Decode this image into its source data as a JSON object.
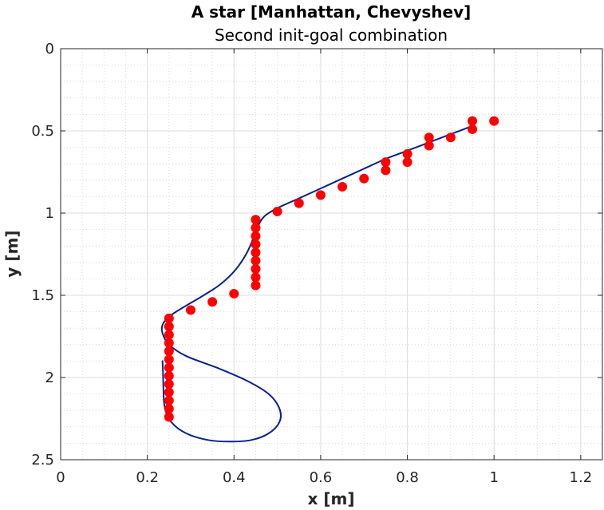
{
  "chart_data": {
    "type": "scatter",
    "title": "A star [Manhattan, Chevyshev]",
    "subtitle": "Second init-goal combination",
    "xlabel": "x [m]",
    "ylabel": "y [m]",
    "xlim": [
      0,
      1.25
    ],
    "ylim": [
      0,
      2.5
    ],
    "y_reversed": true,
    "grid": "major and minor",
    "x_ticks": [
      0,
      0.2,
      0.4,
      0.6,
      0.8,
      1,
      1.2
    ],
    "x_tick_labels": [
      "0",
      "0.2",
      "0.4",
      "0.6",
      "0.8",
      "1",
      "1.2"
    ],
    "y_ticks": [
      0,
      0.5,
      1,
      1.5,
      2,
      2.5
    ],
    "y_tick_labels": [
      "0",
      "0.5",
      "1",
      "1.5",
      "2",
      "2.5"
    ],
    "series": [
      {
        "kind": "points",
        "color": "#ff0000",
        "points": [
          [
            1.0,
            0.44
          ],
          [
            0.95,
            0.44
          ],
          [
            0.95,
            0.49
          ],
          [
            0.9,
            0.54
          ],
          [
            0.85,
            0.54
          ],
          [
            0.85,
            0.59
          ],
          [
            0.8,
            0.64
          ],
          [
            0.8,
            0.69
          ],
          [
            0.75,
            0.69
          ],
          [
            0.75,
            0.74
          ],
          [
            0.7,
            0.79
          ],
          [
            0.65,
            0.84
          ],
          [
            0.6,
            0.89
          ],
          [
            0.55,
            0.94
          ],
          [
            0.5,
            0.99
          ],
          [
            0.45,
            1.04
          ],
          [
            0.45,
            1.09
          ],
          [
            0.45,
            1.14
          ],
          [
            0.45,
            1.19
          ],
          [
            0.45,
            1.24
          ],
          [
            0.45,
            1.29
          ],
          [
            0.45,
            1.34
          ],
          [
            0.45,
            1.39
          ],
          [
            0.45,
            1.44
          ],
          [
            0.4,
            1.49
          ],
          [
            0.35,
            1.54
          ],
          [
            0.3,
            1.59
          ],
          [
            0.25,
            1.64
          ],
          [
            0.25,
            1.69
          ],
          [
            0.25,
            1.74
          ],
          [
            0.25,
            1.79
          ],
          [
            0.25,
            1.84
          ],
          [
            0.25,
            1.89
          ],
          [
            0.25,
            1.94
          ],
          [
            0.25,
            1.99
          ],
          [
            0.25,
            2.04
          ],
          [
            0.25,
            2.09
          ],
          [
            0.25,
            2.14
          ],
          [
            0.25,
            2.19
          ],
          [
            0.25,
            2.24
          ]
        ]
      },
      {
        "kind": "line",
        "color": "#0a1f8f",
        "points": [
          [
            0.95,
            0.47
          ],
          [
            0.9,
            0.52
          ],
          [
            0.85,
            0.57
          ],
          [
            0.8,
            0.62
          ],
          [
            0.75,
            0.67
          ],
          [
            0.7,
            0.73
          ],
          [
            0.65,
            0.79
          ],
          [
            0.6,
            0.85
          ],
          [
            0.55,
            0.91
          ],
          [
            0.5,
            0.97
          ],
          [
            0.47,
            1.02
          ],
          [
            0.455,
            1.08
          ],
          [
            0.445,
            1.15
          ],
          [
            0.43,
            1.24
          ],
          [
            0.405,
            1.34
          ],
          [
            0.37,
            1.43
          ],
          [
            0.33,
            1.5
          ],
          [
            0.285,
            1.57
          ],
          [
            0.25,
            1.63
          ],
          [
            0.235,
            1.68
          ],
          [
            0.235,
            1.73
          ],
          [
            0.25,
            1.8
          ],
          [
            0.29,
            1.87
          ],
          [
            0.36,
            1.94
          ],
          [
            0.43,
            2.02
          ],
          [
            0.48,
            2.1
          ],
          [
            0.505,
            2.19
          ],
          [
            0.505,
            2.27
          ],
          [
            0.48,
            2.34
          ],
          [
            0.44,
            2.38
          ],
          [
            0.39,
            2.39
          ],
          [
            0.34,
            2.38
          ],
          [
            0.29,
            2.34
          ],
          [
            0.255,
            2.27
          ],
          [
            0.24,
            2.18
          ],
          [
            0.237,
            2.05
          ],
          [
            0.236,
            1.95
          ],
          [
            0.235,
            1.9
          ]
        ]
      }
    ]
  }
}
